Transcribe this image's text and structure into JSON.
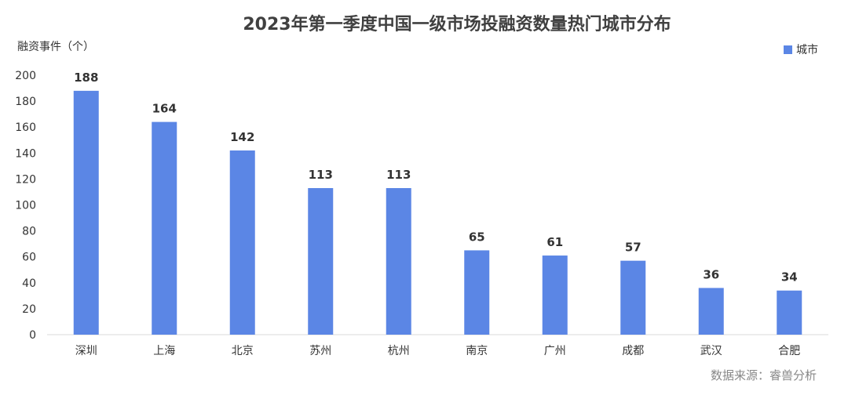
{
  "chart_data": {
    "type": "bar",
    "title": "2023年第一季度中国一级市场投融资数量热门城市分布",
    "ylabel": "融资事件（个）",
    "categories": [
      "深圳",
      "上海",
      "北京",
      "苏州",
      "杭州",
      "南京",
      "广州",
      "成都",
      "武汉",
      "合肥"
    ],
    "series": [
      {
        "name": "城市",
        "values": [
          188,
          164,
          142,
          113,
          113,
          65,
          61,
          57,
          36,
          34
        ]
      }
    ],
    "ylim": [
      0,
      200
    ],
    "yticks": [
      0,
      20,
      40,
      60,
      80,
      100,
      120,
      140,
      160,
      180,
      200
    ],
    "legend_position": "top-right",
    "grid": false,
    "bar_color": "#5b86e5",
    "source": "数据来源：睿兽分析"
  }
}
